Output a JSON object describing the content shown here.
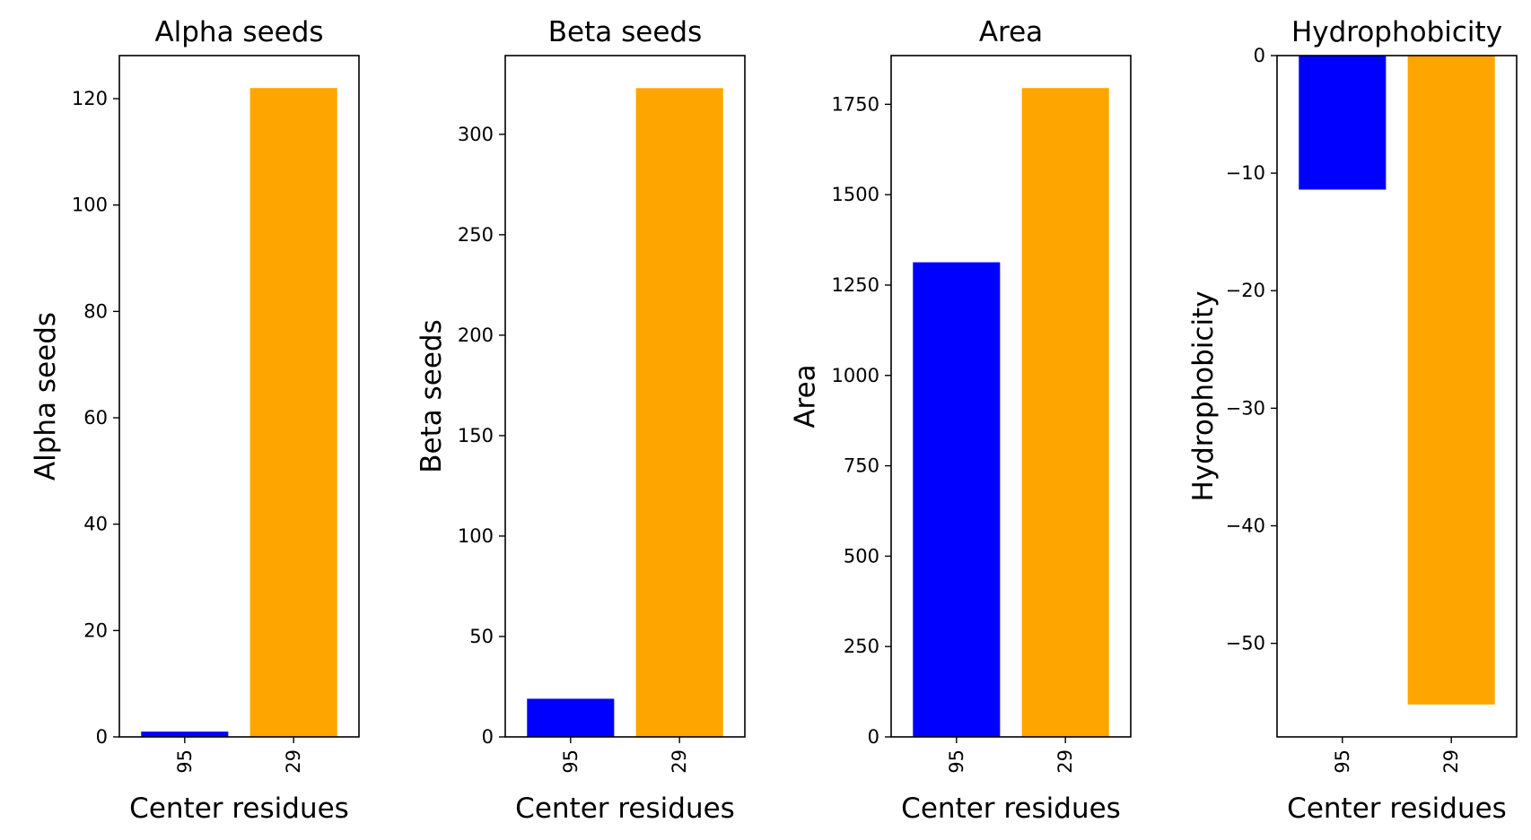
{
  "chart_data": [
    {
      "type": "bar",
      "title": "Alpha seeds",
      "xlabel": "Center residues",
      "ylabel": "Alpha seeds",
      "categories": [
        "95",
        "29"
      ],
      "values": [
        1,
        122
      ],
      "colors": [
        "#0000ff",
        "#ffa500"
      ],
      "ylim": [
        0,
        128.1
      ],
      "yticks": [
        0,
        20,
        40,
        60,
        80,
        100,
        120
      ],
      "yticklabels": [
        "0",
        "20",
        "40",
        "60",
        "80",
        "100",
        "120"
      ],
      "grid": false
    },
    {
      "type": "bar",
      "title": "Beta seeds",
      "xlabel": "Center residues",
      "ylabel": "Beta seeds",
      "categories": [
        "95",
        "29"
      ],
      "values": [
        19,
        323
      ],
      "colors": [
        "#0000ff",
        "#ffa500"
      ],
      "ylim": [
        0,
        339.2
      ],
      "yticks": [
        0,
        50,
        100,
        150,
        200,
        250,
        300
      ],
      "yticklabels": [
        "0",
        "50",
        "100",
        "150",
        "200",
        "250",
        "300"
      ],
      "grid": false
    },
    {
      "type": "bar",
      "title": "Area",
      "xlabel": "Center residues",
      "ylabel": "Area",
      "categories": [
        "95",
        "29"
      ],
      "values": [
        1313,
        1795
      ],
      "colors": [
        "#0000ff",
        "#ffa500"
      ],
      "ylim": [
        0,
        1884.8
      ],
      "yticks": [
        0,
        250,
        500,
        750,
        1000,
        1250,
        1500,
        1750
      ],
      "yticklabels": [
        "0",
        "250",
        "500",
        "750",
        "1000",
        "1250",
        "1500",
        "1750"
      ],
      "grid": false
    },
    {
      "type": "bar",
      "title": "Hydrophobicity",
      "xlabel": "Center residues",
      "ylabel": "Hydrophobicity",
      "categories": [
        "95",
        "29"
      ],
      "values": [
        -11.4,
        -55.2
      ],
      "colors": [
        "#0000ff",
        "#ffa500"
      ],
      "ylim": [
        -57.96,
        0
      ],
      "yticks": [
        0,
        -10,
        -20,
        -30,
        -40,
        -50
      ],
      "yticklabels": [
        "0",
        "−10",
        "−20",
        "−30",
        "−40",
        "−50"
      ],
      "grid": false
    }
  ]
}
